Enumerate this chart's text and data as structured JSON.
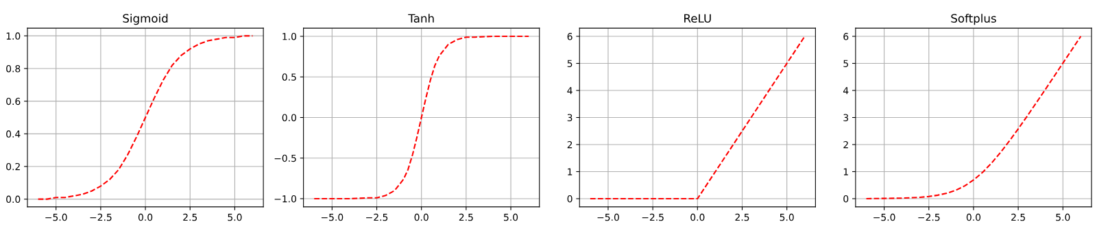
{
  "chart_data": [
    {
      "type": "line",
      "title": "Sigmoid",
      "grid": true,
      "line_style": "dashed",
      "xlim": [
        -6.6,
        6.6
      ],
      "ylim": [
        -0.047,
        1.047
      ],
      "xticks": [
        {
          "value": -5,
          "label": "−5.0"
        },
        {
          "value": -2.5,
          "label": "−2.5"
        },
        {
          "value": 0,
          "label": "0.0"
        },
        {
          "value": 2.5,
          "label": "2.5"
        },
        {
          "value": 5,
          "label": "5.0"
        }
      ],
      "yticks": [
        {
          "value": 0,
          "label": "0.0"
        },
        {
          "value": 0.2,
          "label": "0.2"
        },
        {
          "value": 0.4,
          "label": "0.4"
        },
        {
          "value": 0.6,
          "label": "0.6"
        },
        {
          "value": 0.8,
          "label": "0.8"
        },
        {
          "value": 1,
          "label": "1.0"
        }
      ],
      "x": [
        -6,
        -5.5,
        -5,
        -4.5,
        -4,
        -3.5,
        -3,
        -2.5,
        -2,
        -1.5,
        -1,
        -0.5,
        0,
        0.5,
        1,
        1.5,
        2,
        2.5,
        3,
        3.5,
        4,
        4.5,
        5,
        5.5,
        6
      ],
      "series": [
        {
          "color": "#ff0000",
          "values": [
            0,
            0,
            0.01,
            0.01,
            0.02,
            0.03,
            0.05,
            0.08,
            0.12,
            0.18,
            0.27,
            0.38,
            0.5,
            0.62,
            0.73,
            0.82,
            0.88,
            0.92,
            0.95,
            0.97,
            0.98,
            0.99,
            0.99,
            1,
            1
          ]
        }
      ]
    },
    {
      "type": "line",
      "title": "Tanh",
      "grid": true,
      "line_style": "dashed",
      "xlim": [
        -6.6,
        6.6
      ],
      "ylim": [
        -1.1,
        1.1
      ],
      "xticks": [
        {
          "value": -5,
          "label": "−5.0"
        },
        {
          "value": -2.5,
          "label": "−2.5"
        },
        {
          "value": 0,
          "label": "0.0"
        },
        {
          "value": 2.5,
          "label": "2.5"
        },
        {
          "value": 5,
          "label": "5.0"
        }
      ],
      "yticks": [
        {
          "value": -1,
          "label": "−1.0"
        },
        {
          "value": -0.5,
          "label": "−0.5"
        },
        {
          "value": 0,
          "label": "0.0"
        },
        {
          "value": 0.5,
          "label": "0.5"
        },
        {
          "value": 1,
          "label": "1.0"
        }
      ],
      "x": [
        -6,
        -5,
        -4,
        -3,
        -2.5,
        -2,
        -1.5,
        -1,
        -0.75,
        -0.5,
        -0.25,
        0,
        0.25,
        0.5,
        0.75,
        1,
        1.5,
        2,
        2.5,
        3,
        4,
        5,
        6
      ],
      "series": [
        {
          "color": "#ff0000",
          "values": [
            -1,
            -1,
            -1,
            -0.99,
            -0.99,
            -0.96,
            -0.9,
            -0.76,
            -0.64,
            -0.46,
            -0.24,
            0,
            0.24,
            0.46,
            0.64,
            0.76,
            0.9,
            0.96,
            0.99,
            0.99,
            1,
            1,
            1
          ]
        }
      ]
    },
    {
      "type": "line",
      "title": "ReLU",
      "grid": true,
      "line_style": "dashed",
      "xlim": [
        -6.6,
        6.6
      ],
      "ylim": [
        -0.3,
        6.3
      ],
      "xticks": [
        {
          "value": -5,
          "label": "−5.0"
        },
        {
          "value": -2.5,
          "label": "−2.5"
        },
        {
          "value": 0,
          "label": "0.0"
        },
        {
          "value": 2.5,
          "label": "2.5"
        },
        {
          "value": 5,
          "label": "5.0"
        }
      ],
      "yticks": [
        0,
        1,
        2,
        3,
        4,
        5,
        6
      ],
      "x": [
        -6,
        0,
        6
      ],
      "series": [
        {
          "color": "#ff0000",
          "values": [
            0,
            0,
            6
          ]
        }
      ]
    },
    {
      "type": "line",
      "title": "Softplus",
      "grid": true,
      "line_style": "dashed",
      "xlim": [
        -6.6,
        6.6
      ],
      "ylim": [
        -0.3,
        6.3
      ],
      "xticks": [
        {
          "value": -5,
          "label": "−5.0"
        },
        {
          "value": -2.5,
          "label": "−2.5"
        },
        {
          "value": 0,
          "label": "0.0"
        },
        {
          "value": 2.5,
          "label": "2.5"
        },
        {
          "value": 5,
          "label": "5.0"
        }
      ],
      "yticks": [
        0,
        1,
        2,
        3,
        4,
        5,
        6
      ],
      "x": [
        -6,
        -5,
        -4,
        -3,
        -2.5,
        -2,
        -1.5,
        -1,
        -0.5,
        0,
        0.5,
        1,
        1.5,
        2,
        2.5,
        3,
        4,
        5,
        6
      ],
      "series": [
        {
          "color": "#ff0000",
          "values": [
            0,
            0.01,
            0.02,
            0.05,
            0.08,
            0.13,
            0.2,
            0.31,
            0.47,
            0.69,
            0.97,
            1.31,
            1.7,
            2.13,
            2.58,
            3.05,
            4.02,
            5.01,
            6
          ]
        }
      ]
    }
  ]
}
